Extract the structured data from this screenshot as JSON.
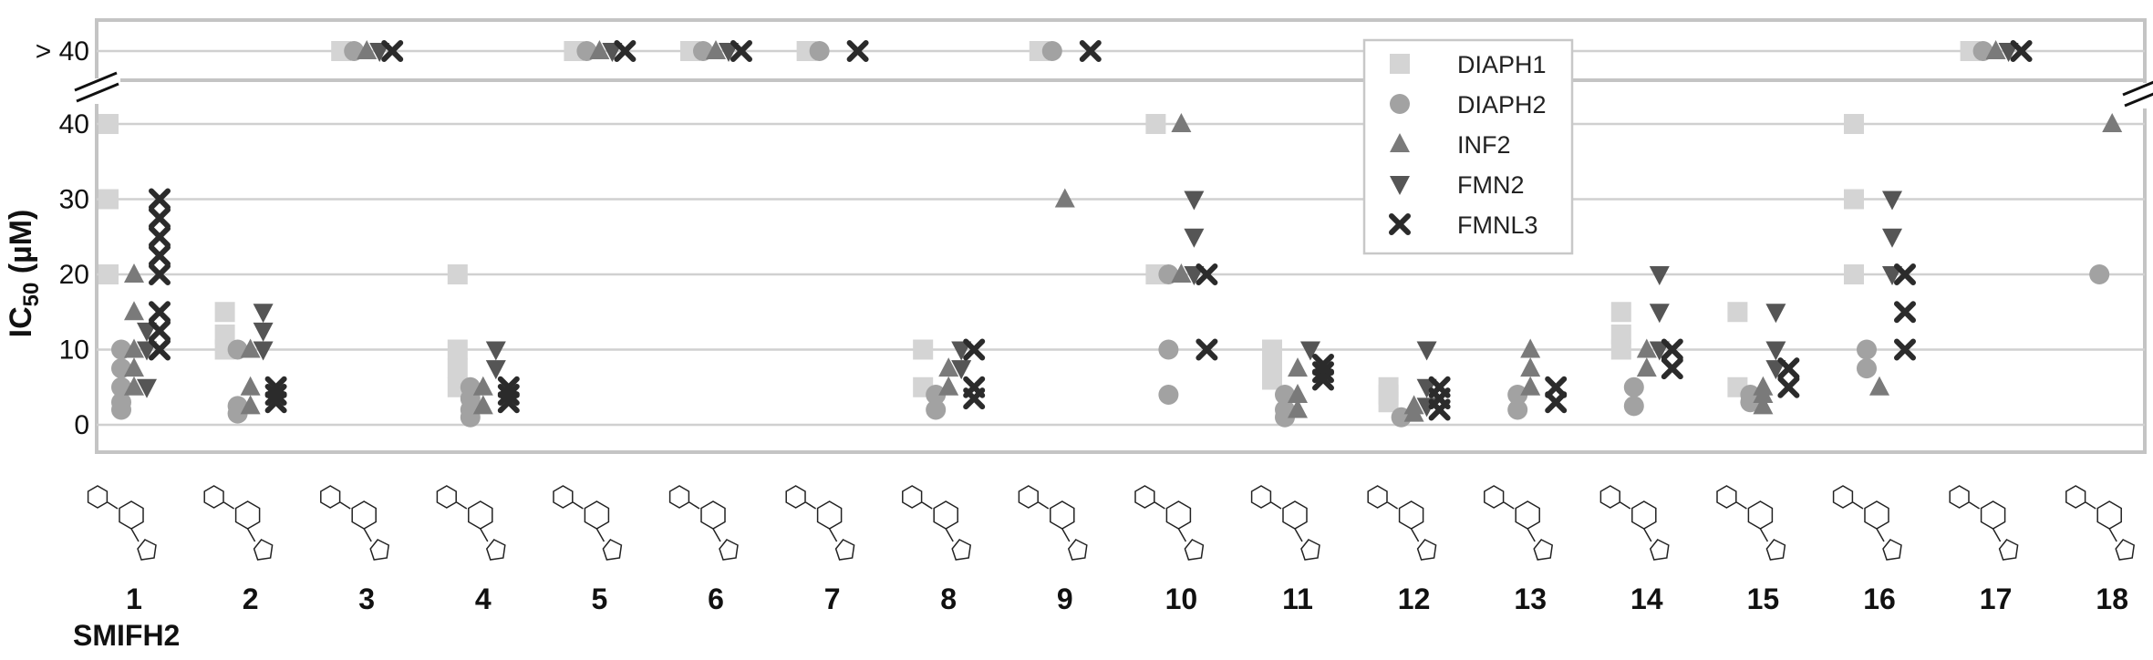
{
  "chart_data": {
    "type": "scatter",
    "ylabel": "IC50 (µM)",
    "ylabel_main": "IC",
    "ylabel_sub": "50",
    "ylabel_rest": " (µM)",
    "y_ticks": [
      {
        "label": "0",
        "value": 0
      },
      {
        "label": "10",
        "value": 10
      },
      {
        "label": "20",
        "value": 20
      },
      {
        "label": "30",
        "value": 30
      },
      {
        "label": "40",
        "value": 40
      }
    ],
    "y_break_label": "> 40",
    "ylim": [
      0,
      40
    ],
    "axis_break": true,
    "grid": true,
    "legend_position": "top-right",
    "categories": [
      "1",
      "2",
      "3",
      "4",
      "5",
      "6",
      "7",
      "8",
      "9",
      "10",
      "11",
      "12",
      "13",
      "14",
      "15",
      "16",
      "17",
      "18"
    ],
    "extra_label": "SMIFH2",
    "series": [
      {
        "name": "DIAPH1",
        "marker": "square",
        "color": "#d4d4d4",
        "points": [
          [
            "1",
            40
          ],
          [
            "1",
            30
          ],
          [
            "1",
            20
          ],
          [
            "2",
            15
          ],
          [
            "2",
            12
          ],
          [
            "2",
            10
          ],
          [
            "3",
            ">40"
          ],
          [
            "4",
            20
          ],
          [
            "4",
            10
          ],
          [
            "4",
            7.5
          ],
          [
            "4",
            5
          ],
          [
            "5",
            ">40"
          ],
          [
            "6",
            ">40"
          ],
          [
            "7",
            ">40"
          ],
          [
            "8",
            10
          ],
          [
            "8",
            5
          ],
          [
            "9",
            ">40"
          ],
          [
            "10",
            40
          ],
          [
            "10",
            20
          ],
          [
            "11",
            10
          ],
          [
            "11",
            8
          ],
          [
            "11",
            6
          ],
          [
            "12",
            5
          ],
          [
            "12",
            4
          ],
          [
            "12",
            3
          ],
          [
            "14",
            15
          ],
          [
            "14",
            12
          ],
          [
            "14",
            10
          ],
          [
            "15",
            15
          ],
          [
            "15",
            5
          ],
          [
            "16",
            40
          ],
          [
            "16",
            30
          ],
          [
            "16",
            20
          ],
          [
            "17",
            ">40"
          ]
        ]
      },
      {
        "name": "DIAPH2",
        "marker": "circle",
        "color": "#a2a2a2",
        "points": [
          [
            "1",
            10
          ],
          [
            "1",
            7.5
          ],
          [
            "1",
            5
          ],
          [
            "1",
            3
          ],
          [
            "1",
            2
          ],
          [
            "2",
            10
          ],
          [
            "2",
            2.5
          ],
          [
            "2",
            1.5
          ],
          [
            "3",
            ">40"
          ],
          [
            "4",
            5
          ],
          [
            "4",
            3.5
          ],
          [
            "4",
            2
          ],
          [
            "4",
            1
          ],
          [
            "5",
            ">40"
          ],
          [
            "6",
            ">40"
          ],
          [
            "7",
            ">40"
          ],
          [
            "8",
            4
          ],
          [
            "8",
            2
          ],
          [
            "9",
            ">40"
          ],
          [
            "10",
            20
          ],
          [
            "10",
            10
          ],
          [
            "10",
            4
          ],
          [
            "11",
            4
          ],
          [
            "11",
            2
          ],
          [
            "11",
            1
          ],
          [
            "12",
            1
          ],
          [
            "13",
            4
          ],
          [
            "13",
            2
          ],
          [
            "14",
            5
          ],
          [
            "14",
            2.5
          ],
          [
            "15",
            4
          ],
          [
            "15",
            3
          ],
          [
            "16",
            10
          ],
          [
            "16",
            7.5
          ],
          [
            "17",
            ">40"
          ],
          [
            "18",
            20
          ]
        ]
      },
      {
        "name": "INF2",
        "marker": "triangle-up",
        "color": "#7a7a7a",
        "points": [
          [
            "1",
            20
          ],
          [
            "1",
            15
          ],
          [
            "1",
            10
          ],
          [
            "1",
            7.5
          ],
          [
            "1",
            5
          ],
          [
            "2",
            10
          ],
          [
            "2",
            5
          ],
          [
            "2",
            2.5
          ],
          [
            "3",
            ">40"
          ],
          [
            "4",
            5
          ],
          [
            "4",
            2.5
          ],
          [
            "5",
            ">40"
          ],
          [
            "6",
            ">40"
          ],
          [
            "8",
            7.5
          ],
          [
            "8",
            5
          ],
          [
            "9",
            30
          ],
          [
            "10",
            40
          ],
          [
            "10",
            20
          ],
          [
            "11",
            7.5
          ],
          [
            "11",
            4
          ],
          [
            "11",
            2
          ],
          [
            "12",
            2.5
          ],
          [
            "12",
            1.5
          ],
          [
            "13",
            10
          ],
          [
            "13",
            7.5
          ],
          [
            "13",
            5
          ],
          [
            "14",
            10
          ],
          [
            "14",
            7.5
          ],
          [
            "15",
            5
          ],
          [
            "15",
            4
          ],
          [
            "15",
            2.5
          ],
          [
            "16",
            5
          ],
          [
            "17",
            ">40"
          ],
          [
            "18",
            40
          ]
        ]
      },
      {
        "name": "FMN2",
        "marker": "triangle-down",
        "color": "#555555",
        "points": [
          [
            "1",
            12.5
          ],
          [
            "1",
            10
          ],
          [
            "1",
            5
          ],
          [
            "2",
            15
          ],
          [
            "2",
            12.5
          ],
          [
            "2",
            10
          ],
          [
            "3",
            ">40"
          ],
          [
            "4",
            10
          ],
          [
            "4",
            7.5
          ],
          [
            "5",
            ">40"
          ],
          [
            "6",
            ">40"
          ],
          [
            "8",
            10
          ],
          [
            "8",
            7.5
          ],
          [
            "10",
            30
          ],
          [
            "10",
            25
          ],
          [
            "10",
            20
          ],
          [
            "11",
            10
          ],
          [
            "12",
            10
          ],
          [
            "12",
            5
          ],
          [
            "12",
            2.5
          ],
          [
            "14",
            20
          ],
          [
            "14",
            15
          ],
          [
            "14",
            10
          ],
          [
            "15",
            15
          ],
          [
            "15",
            10
          ],
          [
            "15",
            7.5
          ],
          [
            "16",
            30
          ],
          [
            "16",
            25
          ],
          [
            "16",
            20
          ],
          [
            "17",
            ">40"
          ]
        ]
      },
      {
        "name": "FMNL3",
        "marker": "x",
        "color": "#2b2b2b",
        "points": [
          [
            "1",
            30
          ],
          [
            "1",
            27.5
          ],
          [
            "1",
            25
          ],
          [
            "1",
            22.5
          ],
          [
            "1",
            20
          ],
          [
            "1",
            15
          ],
          [
            "1",
            12.5
          ],
          [
            "1",
            10
          ],
          [
            "2",
            5
          ],
          [
            "2",
            4
          ],
          [
            "2",
            3
          ],
          [
            "3",
            ">40"
          ],
          [
            "4",
            5
          ],
          [
            "4",
            4
          ],
          [
            "4",
            3
          ],
          [
            "5",
            ">40"
          ],
          [
            "6",
            ">40"
          ],
          [
            "7",
            ">40"
          ],
          [
            "8",
            10
          ],
          [
            "8",
            5
          ],
          [
            "8",
            3.5
          ],
          [
            "9",
            ">40"
          ],
          [
            "10",
            20
          ],
          [
            "10",
            10
          ],
          [
            "11",
            8
          ],
          [
            "11",
            7
          ],
          [
            "11",
            6
          ],
          [
            "12",
            5
          ],
          [
            "12",
            3.5
          ],
          [
            "12",
            2
          ],
          [
            "13",
            5
          ],
          [
            "13",
            3
          ],
          [
            "14",
            10
          ],
          [
            "14",
            7.5
          ],
          [
            "15",
            7.5
          ],
          [
            "15",
            5
          ],
          [
            "16",
            20
          ],
          [
            "16",
            15
          ],
          [
            "16",
            10
          ],
          [
            "17",
            ">40"
          ]
        ]
      }
    ]
  }
}
